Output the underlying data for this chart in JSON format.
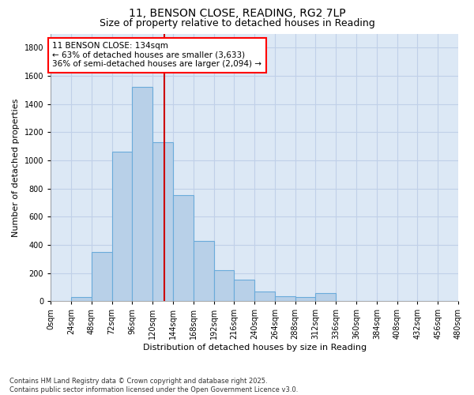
{
  "title": "11, BENSON CLOSE, READING, RG2 7LP",
  "subtitle": "Size of property relative to detached houses in Reading",
  "xlabel": "Distribution of detached houses by size in Reading",
  "ylabel": "Number of detached properties",
  "bar_color": "#b8d0e8",
  "bar_edge_color": "#6aabda",
  "bg_color": "#dce8f5",
  "grid_color": "#c0d0e8",
  "bin_edges": [
    0,
    24,
    48,
    72,
    96,
    120,
    144,
    168,
    192,
    216,
    240,
    264,
    288,
    312,
    336,
    360,
    384,
    408,
    432,
    456,
    480
  ],
  "bar_heights": [
    0,
    30,
    350,
    1060,
    1520,
    1130,
    750,
    425,
    220,
    150,
    70,
    35,
    30,
    55,
    0,
    0,
    0,
    0,
    0,
    0
  ],
  "property_size": 134,
  "annotation_text": "11 BENSON CLOSE: 134sqm\n← 63% of detached houses are smaller (3,633)\n36% of semi-detached houses are larger (2,094) →",
  "annotation_box_color": "white",
  "annotation_border_color": "red",
  "vline_color": "#cc0000",
  "ylim": [
    0,
    1900
  ],
  "yticks": [
    0,
    200,
    400,
    600,
    800,
    1000,
    1200,
    1400,
    1600,
    1800
  ],
  "footnote": "Contains HM Land Registry data © Crown copyright and database right 2025.\nContains public sector information licensed under the Open Government Licence v3.0.",
  "title_fontsize": 10,
  "subtitle_fontsize": 9,
  "axis_label_fontsize": 8,
  "tick_fontsize": 7,
  "annotation_fontsize": 7.5,
  "footnote_fontsize": 6
}
